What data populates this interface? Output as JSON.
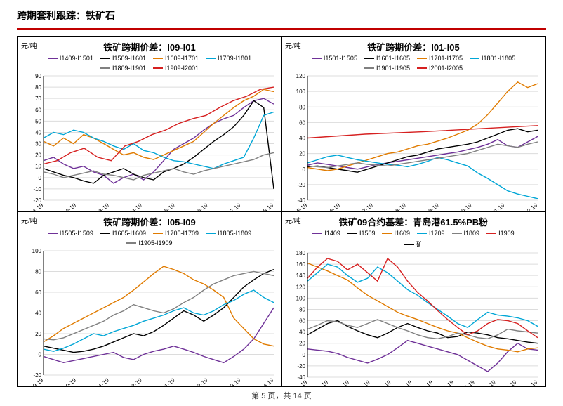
{
  "page": {
    "title": "跨期套利跟踪：铁矿石",
    "footer": "第 5 页，共 14 页",
    "accent_color": "#c00000"
  },
  "common": {
    "y_label": "元/吨",
    "series_colors": {
      "purple": "#6f3198",
      "black": "#000000",
      "orange": "#e07b00",
      "cyan": "#00a6d6",
      "gray": "#808080",
      "red": "#d62020"
    },
    "grid_color": "#dcdcdc",
    "axis_color": "#000000",
    "background_color": "#ffffff",
    "title_fontsize": 13,
    "label_fontsize": 10,
    "tick_fontsize": 8
  },
  "charts": [
    {
      "id": "chart1",
      "title": "铁矿跨期价差：I09-I01",
      "ylim": [
        -20,
        90
      ],
      "ytick_step": 10,
      "x_ticks": [
        "1-19",
        "2-19",
        "3-19",
        "4-19",
        "5-19",
        "6-19",
        "7-19",
        "8-19"
      ],
      "legend": [
        {
          "label": "I1409-I1501",
          "color": "purple"
        },
        {
          "label": "I1509-I1601",
          "color": "black"
        },
        {
          "label": "I1609-I1701",
          "color": "orange"
        },
        {
          "label": "I1709-I1801",
          "color": "cyan"
        },
        {
          "label": "I1809-I1901",
          "color": "gray"
        },
        {
          "label": "I1909-I2001",
          "color": "red"
        }
      ],
      "series": {
        "purple": [
          15,
          18,
          12,
          8,
          10,
          5,
          2,
          -5,
          0,
          3,
          -2,
          5,
          15,
          25,
          30,
          35,
          42,
          48,
          52,
          55,
          62,
          68,
          70,
          65
        ],
        "black": [
          8,
          5,
          2,
          0,
          -3,
          -5,
          2,
          5,
          8,
          3,
          0,
          -2,
          5,
          8,
          12,
          18,
          25,
          32,
          38,
          45,
          55,
          68,
          62,
          -10
        ],
        "orange": [
          32,
          28,
          35,
          30,
          38,
          35,
          30,
          25,
          20,
          22,
          18,
          16,
          20,
          24,
          28,
          32,
          40,
          48,
          55,
          62,
          68,
          72,
          78,
          76
        ],
        "cyan": [
          35,
          40,
          38,
          42,
          40,
          35,
          32,
          28,
          25,
          30,
          24,
          22,
          18,
          15,
          14,
          12,
          10,
          8,
          12,
          15,
          18,
          35,
          55,
          58
        ],
        "gray": [
          5,
          3,
          0,
          2,
          4,
          6,
          3,
          2,
          0,
          -2,
          2,
          4,
          6,
          8,
          5,
          3,
          6,
          8,
          10,
          12,
          14,
          16,
          20,
          22
        ],
        "red": [
          12,
          15,
          22,
          26,
          18,
          15,
          28,
          32,
          38,
          42,
          48,
          52,
          55,
          62,
          68,
          72,
          78,
          80
        ]
      }
    },
    {
      "id": "chart2",
      "title": "铁矿跨期价差：I01-I05",
      "ylim": [
        -40,
        120
      ],
      "ytick_step": 20,
      "x_ticks": [
        "5-19",
        "6-19",
        "7-19",
        "8-19",
        "9-19",
        "10-19",
        "11-19",
        "12-19"
      ],
      "legend": [
        {
          "label": "I1501-I1505",
          "color": "purple"
        },
        {
          "label": "I1601-I1605",
          "color": "black"
        },
        {
          "label": "I1701-I1705",
          "color": "orange"
        },
        {
          "label": "I1801-I1805",
          "color": "cyan"
        },
        {
          "label": "I1901-I1905",
          "color": "gray"
        },
        {
          "label": "I2001-I2005",
          "color": "red"
        }
      ],
      "series": {
        "purple": [
          5,
          8,
          6,
          4,
          2,
          0,
          3,
          6,
          8,
          10,
          12,
          14,
          16,
          18,
          20,
          22,
          25,
          28,
          32,
          38,
          30,
          28,
          35,
          42
        ],
        "black": [
          3,
          4,
          2,
          0,
          -2,
          -4,
          0,
          4,
          8,
          12,
          16,
          18,
          22,
          26,
          28,
          30,
          32,
          35,
          40,
          45,
          50,
          52,
          48,
          50
        ],
        "orange": [
          2,
          0,
          -2,
          0,
          4,
          8,
          12,
          16,
          20,
          22,
          26,
          30,
          32,
          36,
          40,
          45,
          50,
          58,
          70,
          85,
          100,
          112,
          105,
          110
        ],
        "cyan": [
          8,
          12,
          16,
          18,
          15,
          12,
          10,
          8,
          6,
          5,
          3,
          6,
          10,
          15,
          12,
          8,
          4,
          -5,
          -12,
          -20,
          -28,
          -32,
          -35,
          -38
        ],
        "gray": [
          4,
          3,
          2,
          4,
          6,
          8,
          6,
          5,
          4,
          6,
          8,
          10,
          12,
          14,
          16,
          18,
          20,
          24,
          28,
          32,
          30,
          28,
          32,
          35
        ],
        "red": [
          40,
          45,
          48,
          52,
          56
        ]
      }
    },
    {
      "id": "chart3",
      "title": "铁矿跨期价差：I05-I09",
      "ylim": [
        -20,
        100
      ],
      "ytick_step": 20,
      "x_ticks": [
        "9-19",
        "10-19",
        "11-19",
        "12-19",
        "1-19",
        "2-19",
        "3-19",
        "4-19"
      ],
      "legend": [
        {
          "label": "I1505-I1509",
          "color": "purple"
        },
        {
          "label": "I1605-I1609",
          "color": "black"
        },
        {
          "label": "I1705-I1709",
          "color": "orange"
        },
        {
          "label": "I1805-I1809",
          "color": "cyan"
        },
        {
          "label": "I1905-I1909",
          "color": "gray"
        }
      ],
      "series": {
        "purple": [
          -2,
          -5,
          -8,
          -6,
          -4,
          -2,
          0,
          2,
          -3,
          -5,
          0,
          3,
          5,
          8,
          5,
          2,
          -2,
          -5,
          -8,
          -2,
          5,
          15,
          30,
          45
        ],
        "black": [
          8,
          6,
          4,
          2,
          3,
          5,
          8,
          12,
          16,
          20,
          18,
          22,
          28,
          35,
          42,
          38,
          32,
          38,
          45,
          55,
          65,
          72,
          78,
          82
        ],
        "orange": [
          12,
          18,
          25,
          30,
          35,
          40,
          45,
          50,
          55,
          62,
          70,
          78,
          85,
          82,
          78,
          72,
          68,
          62,
          55,
          35,
          25,
          15,
          10,
          8
        ],
        "cyan": [
          5,
          3,
          6,
          10,
          15,
          20,
          18,
          22,
          25,
          28,
          32,
          35,
          38,
          42,
          45,
          40,
          38,
          42,
          48,
          52,
          58,
          62,
          55,
          50
        ],
        "gray": [
          15,
          14,
          16,
          20,
          24,
          28,
          32,
          38,
          42,
          48,
          45,
          42,
          40,
          44,
          50,
          55,
          62,
          68,
          72,
          76,
          78,
          80,
          78,
          76
        ]
      }
    },
    {
      "id": "chart4",
      "title": "铁矿09合约基差：青岛港61.5%PB粉",
      "ylim": [
        -40,
        180
      ],
      "ytick_step": 20,
      "x_ticks": [
        "9-19",
        "10-19",
        "11-19",
        "12-19",
        "1-19",
        "2-19",
        "3-19",
        "4-19",
        "5-19",
        "6-19",
        "7-19",
        "8-19"
      ],
      "legend": [
        {
          "label": "I1409",
          "color": "purple"
        },
        {
          "label": "I1509",
          "color": "black"
        },
        {
          "label": "I1609",
          "color": "orange"
        },
        {
          "label": "I1709",
          "color": "cyan"
        },
        {
          "label": "I1809",
          "color": "gray"
        },
        {
          "label": "I1909",
          "color": "red"
        },
        {
          "label": "矿",
          "color": "black"
        }
      ],
      "series": {
        "purple": [
          10,
          8,
          6,
          2,
          -5,
          -10,
          -15,
          -8,
          0,
          12,
          25,
          20,
          15,
          10,
          5,
          0,
          -10,
          -20,
          -30,
          -15,
          5,
          20,
          10,
          8
        ],
        "black": [
          35,
          45,
          55,
          60,
          50,
          42,
          35,
          30,
          38,
          48,
          55,
          48,
          42,
          38,
          30,
          32,
          40,
          38,
          35,
          30,
          28,
          25,
          22,
          20
        ],
        "orange": [
          162,
          155,
          148,
          140,
          132,
          118,
          105,
          95,
          85,
          75,
          68,
          62,
          55,
          48,
          42,
          38,
          30,
          22,
          15,
          10,
          8,
          5,
          10,
          12
        ],
        "cyan": [
          130,
          145,
          160,
          155,
          140,
          128,
          135,
          155,
          145,
          130,
          115,
          105,
          92,
          80,
          68,
          55,
          48,
          62,
          75,
          70,
          68,
          65,
          60,
          50
        ],
        "gray": [
          45,
          52,
          60,
          58,
          52,
          48,
          55,
          62,
          55,
          48,
          42,
          35,
          30,
          28,
          32,
          38,
          35,
          30,
          28,
          35,
          45,
          42,
          40,
          38
        ],
        "red": [
          135,
          155,
          170,
          165,
          150,
          160,
          145,
          130,
          170,
          155,
          130,
          110,
          95,
          78,
          62,
          48,
          35,
          42,
          55,
          62,
          60,
          55,
          42,
          30
        ]
      }
    }
  ]
}
